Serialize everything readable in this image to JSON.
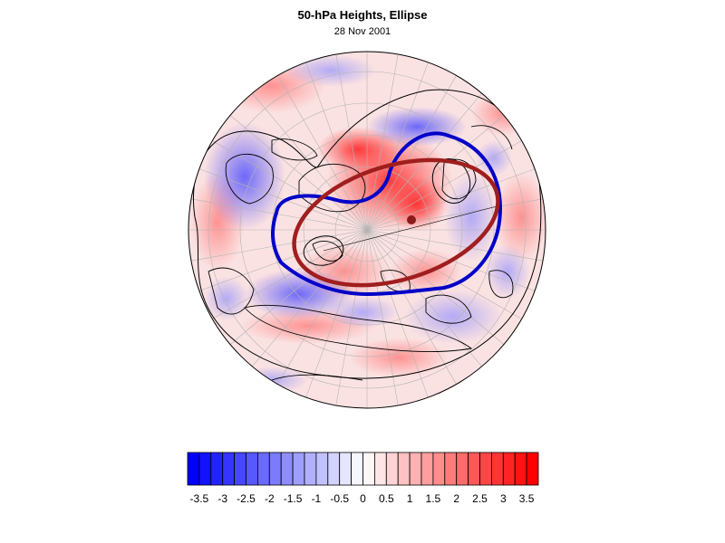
{
  "title": "50-hPa Heights, Ellipse",
  "subtitle": "28 Nov 2001",
  "map": {
    "projection": "north-polar-stereographic",
    "field": "50-hPa height anomaly",
    "contours": [
      {
        "name": "observed-vortex-edge",
        "color": "#0000c8"
      },
      {
        "name": "fitted-ellipse",
        "color": "#a01e1e"
      }
    ],
    "ellipse_center_marker_color": "#8b1a1a"
  },
  "colorbar": {
    "min": -3.75,
    "max": 3.75,
    "step": 0.25,
    "negative_color": "#0000ff",
    "positive_color": "#ff0000",
    "tick_labels": [
      "-3.5",
      "-3",
      "-2.5",
      "-2",
      "-1.5",
      "-1",
      "-0.5",
      "0",
      "0.5",
      "1",
      "1.5",
      "2",
      "2.5",
      "3",
      "3.5"
    ]
  }
}
